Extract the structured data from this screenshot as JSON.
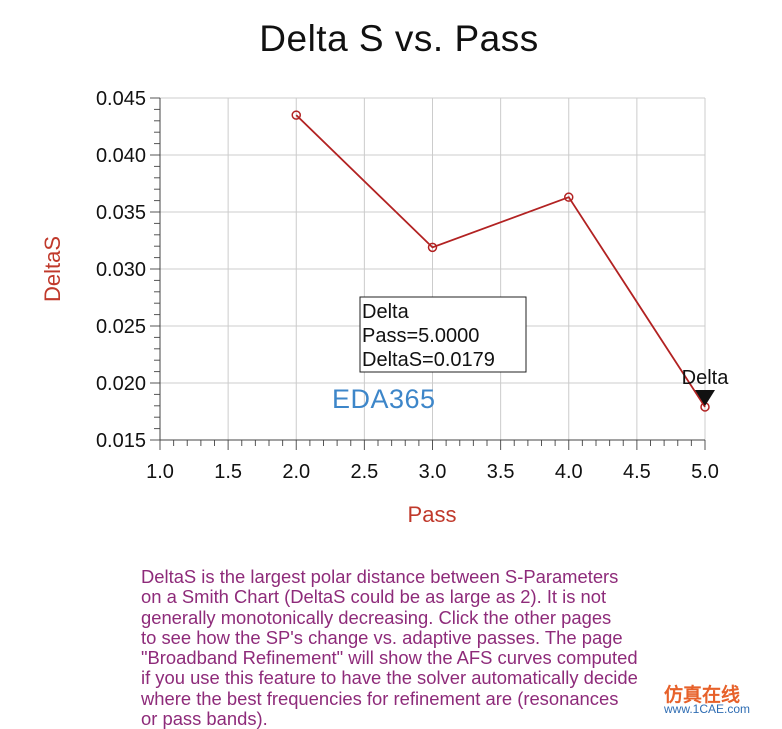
{
  "chart_data": {
    "type": "line",
    "title": "Delta S vs. Pass",
    "xlabel": "Pass",
    "ylabel": "DeltaS",
    "xlim": [
      1.0,
      5.0
    ],
    "ylim": [
      0.015,
      0.045
    ],
    "xticks": [
      "1.0",
      "1.5",
      "2.0",
      "2.5",
      "3.0",
      "3.5",
      "4.0",
      "4.5",
      "5.0"
    ],
    "yticks": [
      "0.045",
      "0.040",
      "0.035",
      "0.030",
      "0.025",
      "0.020",
      "0.015"
    ],
    "grid": true,
    "series": [
      {
        "x": [
          2,
          3,
          4,
          5
        ],
        "y": [
          0.0435,
          0.0319,
          0.0363,
          0.0179
        ],
        "color": "#b22222"
      }
    ],
    "marker": {
      "label": "Delta",
      "x": 5.0,
      "y": 0.0179,
      "readout": [
        "Delta",
        "Pass=5.0000",
        "DeltaS=0.0179"
      ]
    }
  },
  "description": "DeltaS is the largest polar distance between S-Parameters\non a Smith Chart (DeltaS could be as large as 2).  It is not\ngenerally monotonically decreasing.  Click the other pages\nto see how the SP's change vs. adaptive passes.  The page\n\"Broadband Refinement\" will show the AFS curves computed\nif you use this feature to have the solver automatically decide\nwhere the best frequencies for refinement are (resonances\nor pass bands).",
  "watermark": {
    "brand": "EDA365",
    "site_cn": "仿真在线",
    "site_url": "www.1CAE.com"
  },
  "colors": {
    "axis_text": "#111111",
    "axis_label": "#c0392b",
    "line": "#b22222",
    "grid": "#cccccc",
    "desc_text": "#8e2b7a"
  }
}
